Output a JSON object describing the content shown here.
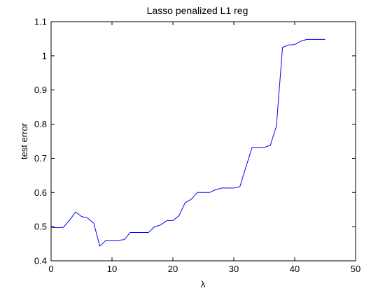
{
  "chart_data": {
    "type": "line",
    "title": "Lasso penalized L1 reg",
    "xlabel": "λ",
    "ylabel": "test error",
    "xlim": [
      0,
      50
    ],
    "ylim": [
      0.4,
      1.1
    ],
    "xticks": [
      0,
      10,
      20,
      30,
      40,
      50
    ],
    "yticks": [
      0.4,
      0.5,
      0.6,
      0.7,
      0.8,
      0.9,
      1,
      1.1
    ],
    "xtick_labels": [
      "0",
      "10",
      "20",
      "30",
      "40",
      "50"
    ],
    "ytick_labels": [
      "0.4",
      "0.5",
      "0.6",
      "0.7",
      "0.8",
      "0.9",
      "1",
      "1.1"
    ],
    "grid": false,
    "legend": "none",
    "series": [
      {
        "color": "#0000ff",
        "x": [
          0,
          1,
          2,
          3,
          4,
          5,
          6,
          7,
          8,
          9,
          10,
          11,
          12,
          13,
          14,
          15,
          16,
          17,
          18,
          19,
          20,
          21,
          22,
          23,
          24,
          25,
          26,
          27,
          28,
          29,
          30,
          31,
          32,
          33,
          34,
          35,
          36,
          37,
          38,
          39,
          40,
          41,
          42,
          43,
          44,
          45
        ],
        "y": [
          0.498,
          0.497,
          0.498,
          0.518,
          0.543,
          0.53,
          0.525,
          0.51,
          0.443,
          0.46,
          0.46,
          0.46,
          0.462,
          0.483,
          0.483,
          0.483,
          0.483,
          0.5,
          0.505,
          0.518,
          0.518,
          0.532,
          0.57,
          0.58,
          0.6,
          0.6,
          0.6,
          0.608,
          0.613,
          0.613,
          0.613,
          0.617,
          0.675,
          0.732,
          0.732,
          0.732,
          0.738,
          0.795,
          1.025,
          1.032,
          1.033,
          1.043,
          1.048,
          1.048,
          1.048,
          1.048
        ]
      }
    ]
  }
}
